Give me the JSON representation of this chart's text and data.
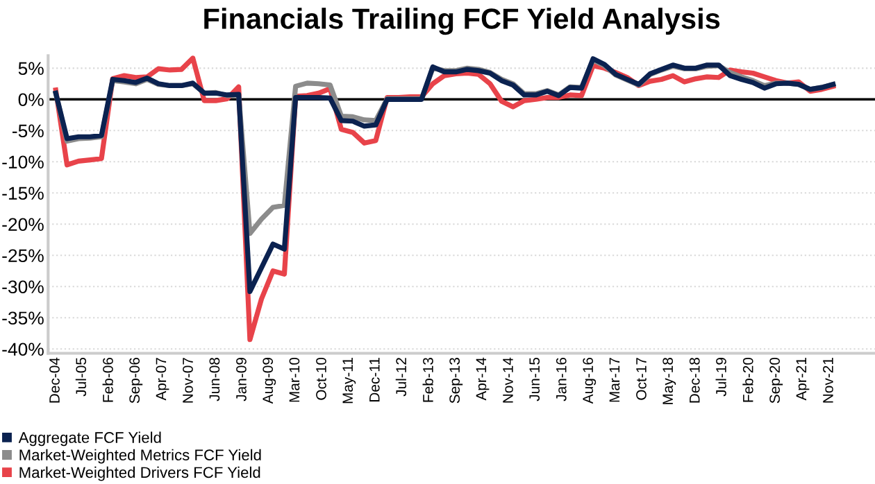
{
  "chart_data": {
    "type": "line",
    "title": "Financials Trailing FCF Yield Analysis",
    "x": [
      "2004-12",
      "2005-03",
      "2005-06",
      "2005-09",
      "2005-12",
      "2006-03",
      "2006-06",
      "2006-09",
      "2006-12",
      "2007-03",
      "2007-06",
      "2007-09",
      "2007-12",
      "2008-03",
      "2008-06",
      "2008-09",
      "2008-12",
      "2009-03",
      "2009-06",
      "2009-09",
      "2009-12",
      "2010-03",
      "2010-06",
      "2010-09",
      "2010-12",
      "2011-03",
      "2011-06",
      "2011-09",
      "2011-12",
      "2012-03",
      "2012-06",
      "2012-09",
      "2012-12",
      "2013-03",
      "2013-06",
      "2013-09",
      "2013-12",
      "2014-03",
      "2014-06",
      "2014-09",
      "2014-12",
      "2015-03",
      "2015-06",
      "2015-09",
      "2015-12",
      "2016-03",
      "2016-06",
      "2016-09",
      "2016-12",
      "2017-03",
      "2017-06",
      "2017-09",
      "2017-12",
      "2018-03",
      "2018-06",
      "2018-09",
      "2018-12",
      "2019-03",
      "2019-06",
      "2019-09",
      "2019-12",
      "2020-03",
      "2020-06",
      "2020-09",
      "2020-12",
      "2021-03",
      "2021-06",
      "2021-09",
      "2021-12"
    ],
    "series": [
      {
        "name": "Market-Weighted Drivers FCF Yield",
        "color": "#e8434a",
        "values": [
          1.5,
          -10.5,
          -9.9,
          -9.7,
          -9.5,
          3.3,
          3.8,
          3.5,
          3.6,
          4.9,
          4.7,
          4.8,
          6.6,
          -0.2,
          -0.2,
          0.1,
          2.0,
          -38.5,
          -32,
          -27.5,
          -28,
          0.5,
          0.6,
          1.0,
          1.7,
          -4.8,
          -5.3,
          -7.0,
          -6.6,
          0.3,
          0.3,
          0.4,
          0.4,
          2.5,
          3.8,
          4.1,
          4.2,
          4.0,
          2.5,
          -0.3,
          -1.2,
          -0.2,
          0.0,
          0.3,
          0.3,
          0.7,
          0.6,
          5.4,
          5.0,
          4.3,
          3.5,
          2.2,
          2.9,
          3.2,
          3.8,
          2.8,
          3.3,
          3.6,
          3.5,
          4.7,
          4.4,
          4.2,
          3.6,
          3.0,
          2.6,
          2.8,
          1.3,
          1.6,
          2.1
        ]
      },
      {
        "name": "Market-Weighted Metrics FCF Yield",
        "color": "#8c8c8c",
        "values": [
          1.0,
          -6.7,
          -6.3,
          -6.2,
          -6.0,
          3.0,
          2.8,
          2.5,
          3.2,
          2.4,
          2.2,
          2.2,
          2.5,
          1.0,
          1.1,
          0.6,
          0.7,
          -21.5,
          -19.2,
          -17.3,
          -17,
          2.1,
          2.6,
          2.5,
          2.3,
          -2.7,
          -2.8,
          -3.3,
          -3.4,
          0.1,
          0.1,
          0.1,
          0.1,
          5.0,
          4.6,
          4.6,
          5.0,
          4.8,
          4.3,
          3.2,
          2.5,
          0.9,
          0.9,
          1.4,
          0.7,
          2.0,
          1.9,
          6.3,
          5.4,
          3.9,
          3.1,
          2.3,
          4.0,
          4.7,
          5.3,
          4.9,
          4.9,
          5.3,
          5.4,
          4.3,
          3.6,
          3.0,
          2.2,
          2.6,
          2.6,
          2.4,
          1.6,
          1.9,
          2.4
        ]
      },
      {
        "name": "Aggregate FCF Yield",
        "color": "#0b2250",
        "values": [
          1.0,
          -6.3,
          -6.0,
          -6.0,
          -5.8,
          3.2,
          3.0,
          2.7,
          3.4,
          2.5,
          2.2,
          2.2,
          2.6,
          1.0,
          1.0,
          0.7,
          0.8,
          -30.8,
          -27,
          -23.2,
          -24,
          0.3,
          0.3,
          0.3,
          0.2,
          -3.4,
          -3.5,
          -4.3,
          -4.1,
          0,
          0,
          0,
          0,
          5.2,
          4.4,
          4.4,
          4.8,
          4.6,
          4.2,
          3.0,
          2.3,
          0.7,
          0.7,
          1.3,
          0.6,
          1.9,
          1.8,
          6.5,
          5.6,
          4.0,
          3.2,
          2.4,
          4.1,
          4.8,
          5.5,
          5.0,
          5.0,
          5.5,
          5.5,
          3.8,
          3.2,
          2.7,
          1.8,
          2.5,
          2.6,
          2.4,
          1.6,
          1.9,
          2.4
        ]
      }
    ],
    "xlim": [
      "2004-10",
      "2022-11"
    ],
    "xticks": [
      {
        "value": "2004-12",
        "label": "Dec-04"
      },
      {
        "value": "2005-07",
        "label": "Jul-05"
      },
      {
        "value": "2006-02",
        "label": "Feb-06"
      },
      {
        "value": "2006-09",
        "label": "Sep-06"
      },
      {
        "value": "2007-04",
        "label": "Apr-07"
      },
      {
        "value": "2007-11",
        "label": "Nov-07"
      },
      {
        "value": "2008-06",
        "label": "Jun-08"
      },
      {
        "value": "2009-01",
        "label": "Jan-09"
      },
      {
        "value": "2009-08",
        "label": "Aug-09"
      },
      {
        "value": "2010-03",
        "label": "Mar-10"
      },
      {
        "value": "2010-10",
        "label": "Oct-10"
      },
      {
        "value": "2011-05",
        "label": "May-11"
      },
      {
        "value": "2011-12",
        "label": "Dec-11"
      },
      {
        "value": "2012-07",
        "label": "Jul-12"
      },
      {
        "value": "2013-02",
        "label": "Feb-13"
      },
      {
        "value": "2013-09",
        "label": "Sep-13"
      },
      {
        "value": "2014-04",
        "label": "Apr-14"
      },
      {
        "value": "2014-11",
        "label": "Nov-14"
      },
      {
        "value": "2015-06",
        "label": "Jun-15"
      },
      {
        "value": "2016-01",
        "label": "Jan-16"
      },
      {
        "value": "2016-08",
        "label": "Aug-16"
      },
      {
        "value": "2017-03",
        "label": "Mar-17"
      },
      {
        "value": "2017-10",
        "label": "Oct-17"
      },
      {
        "value": "2018-05",
        "label": "May-18"
      },
      {
        "value": "2018-12",
        "label": "Dec-18"
      },
      {
        "value": "2019-07",
        "label": "Jul-19"
      },
      {
        "value": "2020-02",
        "label": "Feb-20"
      },
      {
        "value": "2020-09",
        "label": "Sep-20"
      },
      {
        "value": "2021-04",
        "label": "Apr-21"
      },
      {
        "value": "2021-11",
        "label": "Nov-21"
      }
    ],
    "ylim": [
      -40.7,
      7
    ],
    "yticks": [
      {
        "value": -40,
        "label": "-40%"
      },
      {
        "value": -35,
        "label": "-35%"
      },
      {
        "value": -30,
        "label": "-30%"
      },
      {
        "value": -25,
        "label": "-25%"
      },
      {
        "value": -20,
        "label": "-20%"
      },
      {
        "value": -15,
        "label": "-15%"
      },
      {
        "value": -10,
        "label": "-10%"
      },
      {
        "value": -5,
        "label": "-5%"
      },
      {
        "value": 0,
        "label": "0%"
      },
      {
        "value": 5,
        "label": "5%"
      }
    ],
    "ref_lines": [
      {
        "axis": "y",
        "value": 0,
        "color": "#000000",
        "line_style": "solid"
      }
    ],
    "grid": "y",
    "legend": "bottom left",
    "marker": "none",
    "line_style": "solid"
  }
}
